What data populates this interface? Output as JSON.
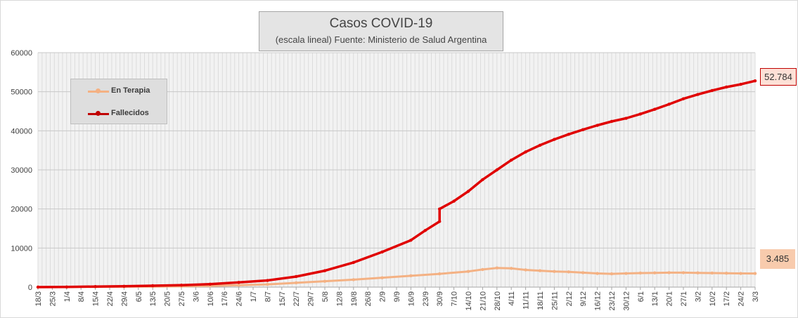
{
  "chart_data": {
    "type": "line",
    "title": "Casos COVID-19",
    "subtitle": "(escala lineal) Fuente: Ministerio de Salud Argentina",
    "ylim": [
      0,
      60000
    ],
    "yticks": [
      0,
      10000,
      20000,
      30000,
      40000,
      50000,
      60000
    ],
    "grid": true,
    "legend_position": "upper-left",
    "x_tick_labels": [
      "18/3",
      "25/3",
      "1/4",
      "8/4",
      "15/4",
      "22/4",
      "29/4",
      "6/5",
      "13/5",
      "20/5",
      "27/5",
      "3/6",
      "10/6",
      "17/6",
      "24/6",
      "1/7",
      "8/7",
      "15/7",
      "22/7",
      "29/7",
      "5/8",
      "12/8",
      "19/8",
      "26/8",
      "2/9",
      "9/9",
      "16/9",
      "23/9",
      "30/9",
      "7/10",
      "14/10",
      "21/10",
      "28/10",
      "4/11",
      "11/11",
      "18/11",
      "25/11",
      "2/12",
      "9/12",
      "16/12",
      "23/12",
      "30/12",
      "6/1",
      "13/1",
      "20/1",
      "27/1",
      "3/2",
      "10/2",
      "17/2",
      "24/2",
      "3/3"
    ],
    "series": [
      {
        "name": "En Terapia",
        "color": "#f4b183",
        "end_label": "3.485",
        "points": [
          [
            "18/3",
            0
          ],
          [
            "1/4",
            40
          ],
          [
            "15/4",
            80
          ],
          [
            "29/4",
            100
          ],
          [
            "13/5",
            140
          ],
          [
            "27/5",
            200
          ],
          [
            "10/6",
            320
          ],
          [
            "24/6",
            480
          ],
          [
            "8/7",
            700
          ],
          [
            "22/7",
            1100
          ],
          [
            "5/8",
            1500
          ],
          [
            "19/8",
            1900
          ],
          [
            "2/9",
            2400
          ],
          [
            "16/9",
            2900
          ],
          [
            "30/9",
            3400
          ],
          [
            "14/10",
            4000
          ],
          [
            "21/10",
            4500
          ],
          [
            "28/10",
            4900
          ],
          [
            "4/11",
            4800
          ],
          [
            "11/11",
            4400
          ],
          [
            "18/11",
            4200
          ],
          [
            "25/11",
            4000
          ],
          [
            "2/12",
            3900
          ],
          [
            "9/12",
            3700
          ],
          [
            "16/12",
            3500
          ],
          [
            "23/12",
            3400
          ],
          [
            "30/12",
            3500
          ],
          [
            "6/1",
            3600
          ],
          [
            "13/1",
            3650
          ],
          [
            "20/1",
            3700
          ],
          [
            "27/1",
            3700
          ],
          [
            "3/2",
            3650
          ],
          [
            "10/2",
            3600
          ],
          [
            "17/2",
            3550
          ],
          [
            "24/2",
            3500
          ],
          [
            "3/3",
            3485
          ]
        ]
      },
      {
        "name": "Fallecidos",
        "color": "#e00000",
        "end_label": "52.784",
        "points": [
          [
            "18/3",
            0
          ],
          [
            "1/4",
            30
          ],
          [
            "15/4",
            150
          ],
          [
            "29/4",
            220
          ],
          [
            "13/5",
            360
          ],
          [
            "27/5",
            500
          ],
          [
            "10/6",
            750
          ],
          [
            "24/6",
            1200
          ],
          [
            "8/7",
            1700
          ],
          [
            "22/7",
            2700
          ],
          [
            "5/8",
            4200
          ],
          [
            "19/8",
            6300
          ],
          [
            "2/9",
            9000
          ],
          [
            "16/9",
            12000
          ],
          [
            "23/9",
            14500
          ],
          [
            "30/9",
            16800
          ],
          [
            "30/9",
            20000
          ],
          [
            "7/10",
            22000
          ],
          [
            "14/10",
            24500
          ],
          [
            "21/10",
            27500
          ],
          [
            "28/10",
            30000
          ],
          [
            "4/11",
            32500
          ],
          [
            "11/11",
            34600
          ],
          [
            "18/11",
            36300
          ],
          [
            "25/11",
            37800
          ],
          [
            "2/12",
            39100
          ],
          [
            "9/12",
            40300
          ],
          [
            "16/12",
            41400
          ],
          [
            "23/12",
            42400
          ],
          [
            "30/12",
            43200
          ],
          [
            "6/1",
            44300
          ],
          [
            "13/1",
            45500
          ],
          [
            "20/1",
            46800
          ],
          [
            "27/1",
            48200
          ],
          [
            "3/2",
            49300
          ],
          [
            "10/2",
            50300
          ],
          [
            "17/2",
            51200
          ],
          [
            "24/2",
            51900
          ],
          [
            "3/3",
            52784
          ]
        ]
      }
    ]
  }
}
